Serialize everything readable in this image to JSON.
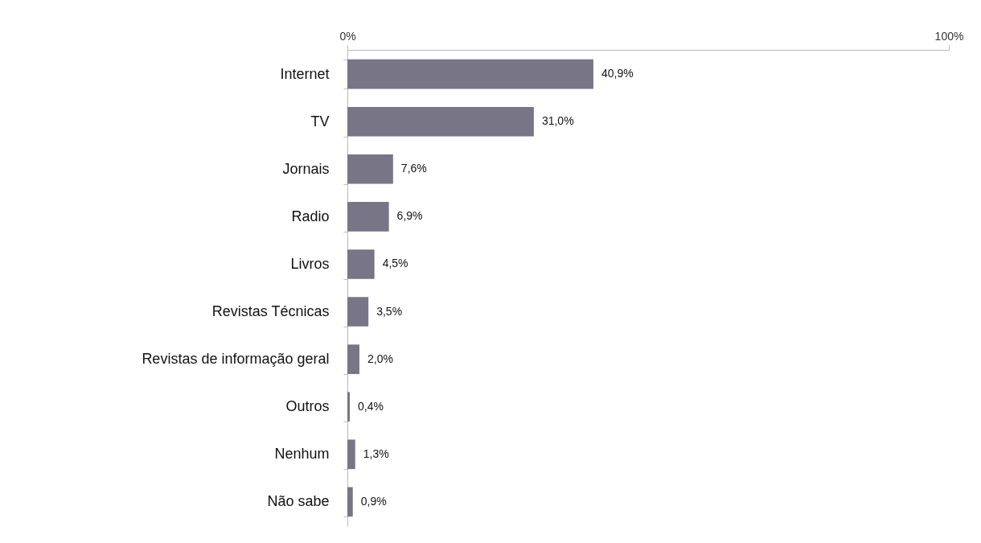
{
  "chart_data": {
    "type": "bar",
    "orientation": "horizontal",
    "categories": [
      "Internet",
      "TV",
      "Jornais",
      "Radio",
      "Livros",
      "Revistas Técnicas",
      "Revistas de informação geral",
      "Outros",
      "Nenhum",
      "Não sabe"
    ],
    "values": [
      40.9,
      31.0,
      7.6,
      6.9,
      4.5,
      3.5,
      2.0,
      0.4,
      1.3,
      0.9
    ],
    "value_labels": [
      "40,9%",
      "31,0%",
      "7,6%",
      "6,9%",
      "4,5%",
      "3,5%",
      "2,0%",
      "0,4%",
      "1,3%",
      "0,9%"
    ],
    "color": "#787586",
    "xlim": [
      0,
      100
    ],
    "xticks": [
      {
        "value": 0,
        "label": "0%"
      },
      {
        "value": 100,
        "label": "100%"
      }
    ],
    "grid": false
  }
}
